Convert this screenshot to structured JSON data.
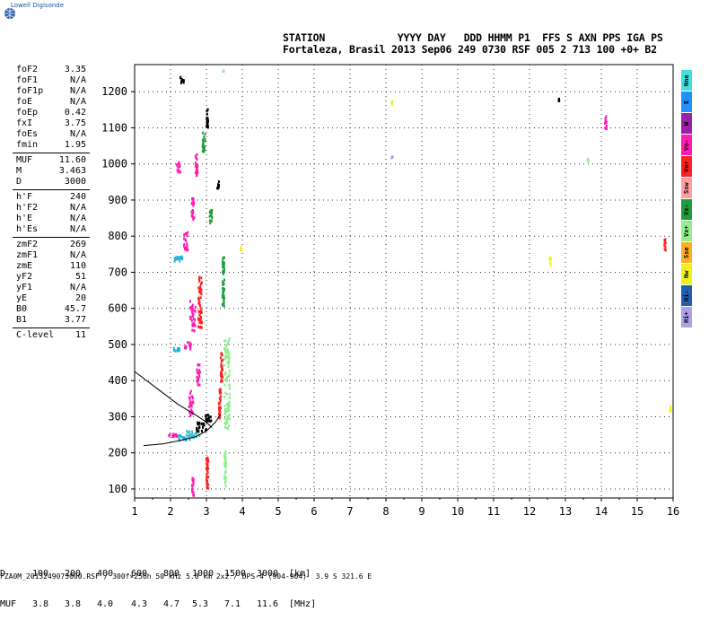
{
  "logo": {
    "text": "Lowell Digisonde"
  },
  "header": {
    "line1": "STATION            YYYY DAY   DDD HHMM P1  FFS S AXN PPS IGA PS",
    "line2": "Fortaleza, Brasil 2013 Sep06 249 0730 RSF 005 2 713 100 +0+ B2"
  },
  "params": {
    "group1": [
      {
        "k": "foF2",
        "v": "3.35"
      },
      {
        "k": "foF1",
        "v": "N/A"
      },
      {
        "k": "foF1p",
        "v": "N/A"
      },
      {
        "k": "foE",
        "v": "N/A"
      },
      {
        "k": "foEp",
        "v": "0.42"
      },
      {
        "k": "fxI",
        "v": "3.75"
      },
      {
        "k": "foEs",
        "v": "N/A"
      },
      {
        "k": "fmin",
        "v": "1.95"
      }
    ],
    "group2": [
      {
        "k": "MUF",
        "v": "11.60"
      },
      {
        "k": "M",
        "v": "3.463"
      },
      {
        "k": "D",
        "v": "3000"
      }
    ],
    "group3": [
      {
        "k": "h'F",
        "v": "240"
      },
      {
        "k": "h'F2",
        "v": "N/A"
      },
      {
        "k": "h'E",
        "v": "N/A"
      },
      {
        "k": "h'Es",
        "v": "N/A"
      }
    ],
    "group4": [
      {
        "k": "zmF2",
        "v": "269"
      },
      {
        "k": "zmF1",
        "v": "N/A"
      },
      {
        "k": "zmE",
        "v": "110"
      },
      {
        "k": "yF2",
        "v": "51"
      },
      {
        "k": "yF1",
        "v": "N/A"
      },
      {
        "k": "yE",
        "v": "20"
      },
      {
        "k": "B0",
        "v": "45.7"
      },
      {
        "k": "B1",
        "v": "3.77"
      }
    ],
    "group5": [
      {
        "k": "C-level",
        "v": "11"
      }
    ]
  },
  "legend": [
    {
      "label": "Nne",
      "color": "#40e0e0"
    },
    {
      "label": "E",
      "color": "#1e90ff"
    },
    {
      "label": "W",
      "color": "#9b1fa8"
    },
    {
      "label": "Vo-",
      "color": "#ff1ab3"
    },
    {
      "label": "Vo+",
      "color": "#ff2020"
    },
    {
      "label": "Ssw",
      "color": "#ffa0a0"
    },
    {
      "label": "Vx-",
      "color": "#1e9e3a"
    },
    {
      "label": "Vx+",
      "color": "#90ee90"
    },
    {
      "label": "Sse",
      "color": "#ffb020"
    },
    {
      "label": "Nw",
      "color": "#f0f020"
    },
    {
      "label": "Hi-",
      "color": "#2060b0"
    },
    {
      "label": "Hi+",
      "color": "#b0a0e8"
    }
  ],
  "chart_data": {
    "type": "scatter",
    "xlim": [
      1,
      16
    ],
    "ylim": [
      75,
      1275
    ],
    "xticks": [
      1,
      2,
      3,
      4,
      5,
      6,
      7,
      8,
      9,
      10,
      11,
      12,
      13,
      14,
      15,
      16
    ],
    "yticks": [
      100,
      200,
      300,
      400,
      500,
      600,
      700,
      800,
      900,
      1000,
      1100,
      1200
    ],
    "grid": true,
    "profile_line": [
      [
        1.0,
        425
      ],
      [
        1.6,
        380
      ],
      [
        2.2,
        335
      ],
      [
        2.7,
        305
      ],
      [
        3.0,
        285
      ],
      [
        3.15,
        270
      ]
    ],
    "profile_line2": [
      [
        1.25,
        220
      ],
      [
        1.8,
        225
      ],
      [
        2.3,
        235
      ],
      [
        2.7,
        245
      ],
      [
        3.0,
        260
      ],
      [
        3.25,
        285
      ],
      [
        3.38,
        305
      ]
    ],
    "echoes": [
      {
        "f": 2.35,
        "h": 245,
        "w": 0.35,
        "dh": 15,
        "color": "#20b0e0"
      },
      {
        "f": 2.6,
        "h": 255,
        "w": 0.4,
        "dh": 20,
        "color": "#40c0d0"
      },
      {
        "f": 2.85,
        "h": 275,
        "w": 0.3,
        "dh": 25,
        "color": "#000000"
      },
      {
        "f": 3.05,
        "h": 300,
        "w": 0.2,
        "dh": 20,
        "color": "#000000"
      },
      {
        "f": 2.05,
        "h": 250,
        "w": 0.25,
        "dh": 10,
        "color": "#ff1ab3"
      },
      {
        "f": 2.55,
        "h": 340,
        "w": 0.12,
        "dh": 70,
        "color": "#ff1ab3"
      },
      {
        "f": 2.75,
        "h": 420,
        "w": 0.1,
        "dh": 60,
        "color": "#ff1ab3"
      },
      {
        "f": 3.35,
        "h": 340,
        "w": 0.06,
        "dh": 80,
        "color": "#ff2020"
      },
      {
        "f": 2.5,
        "h": 500,
        "w": 0.25,
        "dh": 20,
        "color": "#ff1ab3"
      },
      {
        "f": 2.6,
        "h": 580,
        "w": 0.15,
        "dh": 90,
        "color": "#ff1ab3"
      },
      {
        "f": 2.8,
        "h": 620,
        "w": 0.1,
        "dh": 140,
        "color": "#ff2020"
      },
      {
        "f": 2.2,
        "h": 740,
        "w": 0.25,
        "dh": 15,
        "color": "#20b0e0"
      },
      {
        "f": 2.4,
        "h": 790,
        "w": 0.12,
        "dh": 50,
        "color": "#ff1ab3"
      },
      {
        "f": 2.6,
        "h": 880,
        "w": 0.08,
        "dh": 60,
        "color": "#ff1ab3"
      },
      {
        "f": 2.15,
        "h": 490,
        "w": 0.2,
        "dh": 12,
        "color": "#20b0e0"
      },
      {
        "f": 3.4,
        "h": 440,
        "w": 0.06,
        "dh": 80,
        "color": "#ff2020"
      },
      {
        "f": 3.0,
        "h": 150,
        "w": 0.06,
        "dh": 90,
        "color": "#ff2020"
      },
      {
        "f": 2.6,
        "h": 110,
        "w": 0.05,
        "dh": 50,
        "color": "#ff1ab3"
      },
      {
        "f": 3.55,
        "h": 400,
        "w": 0.15,
        "dh": 260,
        "color": "#90ee90"
      },
      {
        "f": 3.5,
        "h": 160,
        "w": 0.05,
        "dh": 100,
        "color": "#90ee90"
      },
      {
        "f": 3.45,
        "h": 680,
        "w": 0.05,
        "dh": 140,
        "color": "#1e9e3a"
      },
      {
        "f": 3.0,
        "h": 1130,
        "w": 0.05,
        "dh": 50,
        "color": "#000000"
      },
      {
        "f": 2.9,
        "h": 1060,
        "w": 0.08,
        "dh": 60,
        "color": "#1e9e3a"
      },
      {
        "f": 2.7,
        "h": 1000,
        "w": 0.07,
        "dh": 60,
        "color": "#ff1ab3"
      },
      {
        "f": 2.2,
        "h": 995,
        "w": 0.1,
        "dh": 30,
        "color": "#ff1ab3"
      },
      {
        "f": 2.3,
        "h": 1238,
        "w": 0.1,
        "dh": 20,
        "color": "#000000"
      },
      {
        "f": 3.3,
        "h": 945,
        "w": 0.05,
        "dh": 20,
        "color": "#000000"
      },
      {
        "f": 3.1,
        "h": 860,
        "w": 0.08,
        "dh": 40,
        "color": "#1e9e3a"
      },
      {
        "f": 3.45,
        "h": 1262,
        "w": 0.03,
        "dh": 8,
        "color": "#90ee90"
      },
      {
        "f": 8.15,
        "h": 1172,
        "w": 0.04,
        "dh": 8,
        "color": "#f0f020"
      },
      {
        "f": 8.15,
        "h": 1020,
        "w": 0.04,
        "dh": 8,
        "color": "#b0a0e8"
      },
      {
        "f": 12.8,
        "h": 1182,
        "w": 0.04,
        "dh": 8,
        "color": "#000000"
      },
      {
        "f": 13.6,
        "h": 1015,
        "w": 0.04,
        "dh": 8,
        "color": "#90ee90"
      },
      {
        "f": 14.1,
        "h": 1120,
        "w": 0.05,
        "dh": 40,
        "color": "#ff1ab3"
      },
      {
        "f": 12.55,
        "h": 730,
        "w": 0.04,
        "dh": 30,
        "color": "#f0f020"
      },
      {
        "f": 15.75,
        "h": 780,
        "w": 0.04,
        "dh": 30,
        "color": "#ff2020"
      },
      {
        "f": 15.9,
        "h": 325,
        "w": 0.04,
        "dh": 15,
        "color": "#f0f020"
      },
      {
        "f": 3.95,
        "h": 770,
        "w": 0.04,
        "dh": 10,
        "color": "#f0f020"
      }
    ]
  },
  "bottom": {
    "d_row": [
      "D",
      "100",
      "200",
      "400",
      "600",
      "800",
      "1000",
      "1500",
      "3000",
      "[km]"
    ],
    "muf_row": [
      "MUF",
      "3.8",
      "3.8",
      "4.0",
      "4.3",
      "4.7",
      "5.3",
      "7.1",
      "11.6",
      "[MHz]"
    ],
    "footer": "FZA0M_2013249073000.RSF / 300f×256h 50 kHz 5.0 km 2x2 / DPS-4 (904-904)  3.9 S 321.6 E"
  }
}
